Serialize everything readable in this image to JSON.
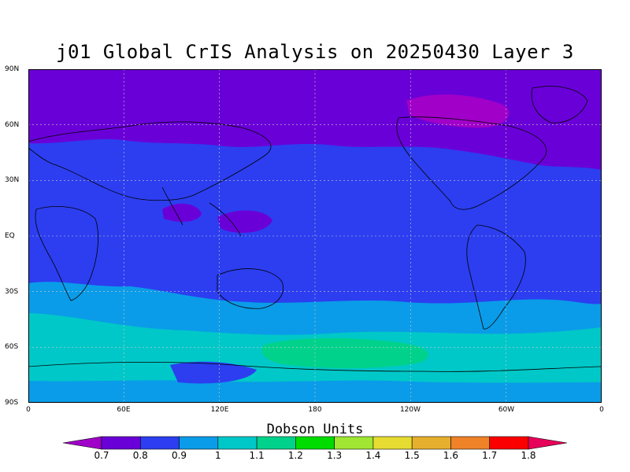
{
  "title": "j01 Global CrIS Analysis on 20250430 Layer 3",
  "latitude_ticks": [
    "90N",
    "60N",
    "30N",
    "EQ",
    "30S",
    "60S",
    "90S"
  ],
  "longitude_ticks": [
    "0",
    "60E",
    "120E",
    "180",
    "120W",
    "60W",
    "0"
  ],
  "colorbar": {
    "title": "Dobson Units",
    "labels": [
      "0.7",
      "0.8",
      "0.9",
      "1",
      "1.1",
      "1.2",
      "1.3",
      "1.4",
      "1.5",
      "1.6",
      "1.7",
      "1.8"
    ],
    "colors": [
      "#a000c8",
      "#6a00d8",
      "#2c3ef0",
      "#0a9ce8",
      "#00c8c8",
      "#00d28c",
      "#00dc00",
      "#a0e632",
      "#e6dc32",
      "#e6af2d",
      "#f08228",
      "#fa0000",
      "#e6005a"
    ]
  },
  "chart_data": {
    "type": "heatmap",
    "title": "j01 Global CrIS Analysis on 20250430 Layer 3",
    "units": "Dobson Units",
    "x_range": [
      0,
      360
    ],
    "y_range": [
      -90,
      90
    ],
    "grid": true,
    "legend_placement": "bottom",
    "levels": [
      0.7,
      0.8,
      0.9,
      1.0,
      1.1,
      1.2,
      1.3,
      1.4,
      1.5,
      1.6,
      1.7,
      1.8
    ]
  }
}
